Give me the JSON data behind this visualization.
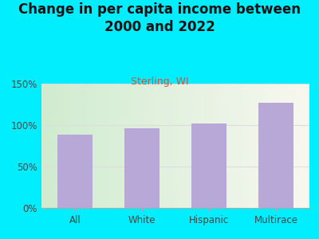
{
  "title": "Change in per capita income between\n2000 and 2022",
  "subtitle": "Sterling, WI",
  "categories": [
    "All",
    "White",
    "Hispanic",
    "Multirace"
  ],
  "values": [
    88,
    96,
    102,
    127
  ],
  "bar_color": "#b8a8d8",
  "title_fontsize": 12,
  "subtitle_fontsize": 9,
  "subtitle_color": "#cc5544",
  "title_color": "#111111",
  "background_outer": "#00eeff",
  "ylim": [
    0,
    150
  ],
  "yticks": [
    0,
    50,
    100,
    150
  ],
  "ytick_labels": [
    "0%",
    "50%",
    "100%",
    "150%"
  ],
  "grid_color": "#dddddd",
  "plot_bg_left": "#d0ecd0",
  "plot_bg_right": "#f0f0e8"
}
